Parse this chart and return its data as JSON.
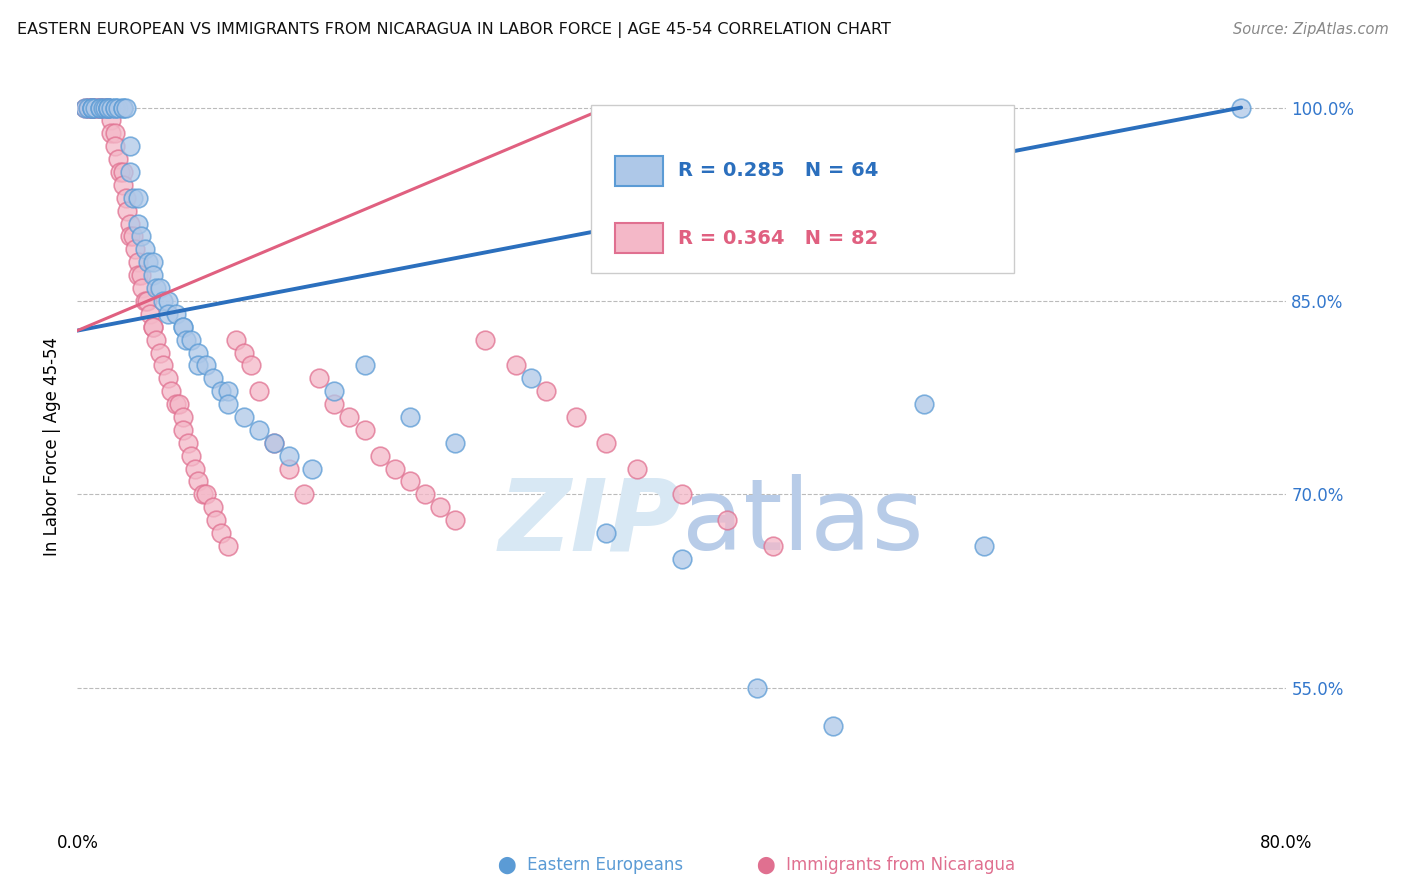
{
  "title": "EASTERN EUROPEAN VS IMMIGRANTS FROM NICARAGUA IN LABOR FORCE | AGE 45-54 CORRELATION CHART",
  "source": "Source: ZipAtlas.com",
  "ylabel": "In Labor Force | Age 45-54",
  "xlim": [
    0.0,
    0.8
  ],
  "ylim": [
    0.44,
    1.035
  ],
  "x_ticks": [
    0.0,
    0.2,
    0.4,
    0.6,
    0.8
  ],
  "x_tick_labels": [
    "0.0%",
    "",
    "",
    "",
    "80.0%"
  ],
  "y_ticks": [
    0.55,
    0.7,
    0.85,
    1.0
  ],
  "legend1_R": "0.285",
  "legend1_N": "64",
  "legend2_R": "0.364",
  "legend2_N": "82",
  "color_blue": "#aec8e8",
  "color_pink": "#f4b8c8",
  "edge_blue": "#5b9bd5",
  "edge_pink": "#e07090",
  "line_color_blue": "#2b6fbd",
  "line_color_pink": "#e06080",
  "background_color": "#ffffff",
  "grid_color": "#bbbbbb",
  "watermark_color": "#d8e8f4",
  "blue_scatter_x": [
    0.005,
    0.007,
    0.01,
    0.01,
    0.01,
    0.012,
    0.015,
    0.015,
    0.017,
    0.018,
    0.02,
    0.02,
    0.02,
    0.022,
    0.025,
    0.025,
    0.027,
    0.03,
    0.03,
    0.032,
    0.035,
    0.035,
    0.037,
    0.04,
    0.04,
    0.042,
    0.045,
    0.047,
    0.05,
    0.05,
    0.052,
    0.055,
    0.057,
    0.06,
    0.06,
    0.065,
    0.07,
    0.07,
    0.072,
    0.075,
    0.08,
    0.08,
    0.085,
    0.09,
    0.095,
    0.1,
    0.1,
    0.11,
    0.12,
    0.13,
    0.14,
    0.155,
    0.17,
    0.19,
    0.22,
    0.25,
    0.3,
    0.35,
    0.4,
    0.45,
    0.5,
    0.56,
    0.6,
    0.77
  ],
  "blue_scatter_y": [
    1.0,
    1.0,
    1.0,
    1.0,
    1.0,
    1.0,
    1.0,
    1.0,
    1.0,
    1.0,
    1.0,
    1.0,
    1.0,
    1.0,
    1.0,
    1.0,
    1.0,
    1.0,
    1.0,
    1.0,
    0.97,
    0.95,
    0.93,
    0.93,
    0.91,
    0.9,
    0.89,
    0.88,
    0.88,
    0.87,
    0.86,
    0.86,
    0.85,
    0.85,
    0.84,
    0.84,
    0.83,
    0.83,
    0.82,
    0.82,
    0.81,
    0.8,
    0.8,
    0.79,
    0.78,
    0.78,
    0.77,
    0.76,
    0.75,
    0.74,
    0.73,
    0.72,
    0.78,
    0.8,
    0.76,
    0.74,
    0.79,
    0.67,
    0.65,
    0.55,
    0.52,
    0.77,
    0.66,
    1.0
  ],
  "pink_scatter_x": [
    0.005,
    0.007,
    0.008,
    0.01,
    0.01,
    0.01,
    0.012,
    0.013,
    0.015,
    0.015,
    0.017,
    0.018,
    0.02,
    0.02,
    0.022,
    0.022,
    0.025,
    0.025,
    0.027,
    0.028,
    0.03,
    0.03,
    0.032,
    0.033,
    0.035,
    0.035,
    0.037,
    0.038,
    0.04,
    0.04,
    0.042,
    0.043,
    0.045,
    0.046,
    0.048,
    0.05,
    0.05,
    0.052,
    0.055,
    0.057,
    0.06,
    0.062,
    0.065,
    0.067,
    0.07,
    0.07,
    0.073,
    0.075,
    0.078,
    0.08,
    0.083,
    0.085,
    0.09,
    0.092,
    0.095,
    0.1,
    0.105,
    0.11,
    0.115,
    0.12,
    0.13,
    0.14,
    0.15,
    0.16,
    0.17,
    0.18,
    0.19,
    0.2,
    0.21,
    0.22,
    0.23,
    0.24,
    0.25,
    0.27,
    0.29,
    0.31,
    0.33,
    0.35,
    0.37,
    0.4,
    0.43,
    0.46
  ],
  "pink_scatter_y": [
    1.0,
    1.0,
    1.0,
    1.0,
    1.0,
    1.0,
    1.0,
    1.0,
    1.0,
    1.0,
    1.0,
    1.0,
    1.0,
    1.0,
    0.99,
    0.98,
    0.98,
    0.97,
    0.96,
    0.95,
    0.95,
    0.94,
    0.93,
    0.92,
    0.91,
    0.9,
    0.9,
    0.89,
    0.88,
    0.87,
    0.87,
    0.86,
    0.85,
    0.85,
    0.84,
    0.83,
    0.83,
    0.82,
    0.81,
    0.8,
    0.79,
    0.78,
    0.77,
    0.77,
    0.76,
    0.75,
    0.74,
    0.73,
    0.72,
    0.71,
    0.7,
    0.7,
    0.69,
    0.68,
    0.67,
    0.66,
    0.82,
    0.81,
    0.8,
    0.78,
    0.74,
    0.72,
    0.7,
    0.79,
    0.77,
    0.76,
    0.75,
    0.73,
    0.72,
    0.71,
    0.7,
    0.69,
    0.68,
    0.82,
    0.8,
    0.78,
    0.76,
    0.74,
    0.72,
    0.7,
    0.68,
    0.66
  ],
  "blue_line_x": [
    0.0,
    0.77
  ],
  "blue_line_y": [
    0.827,
    1.0
  ],
  "pink_line_x": [
    0.0,
    0.35
  ],
  "pink_line_y": [
    0.827,
    1.0
  ]
}
